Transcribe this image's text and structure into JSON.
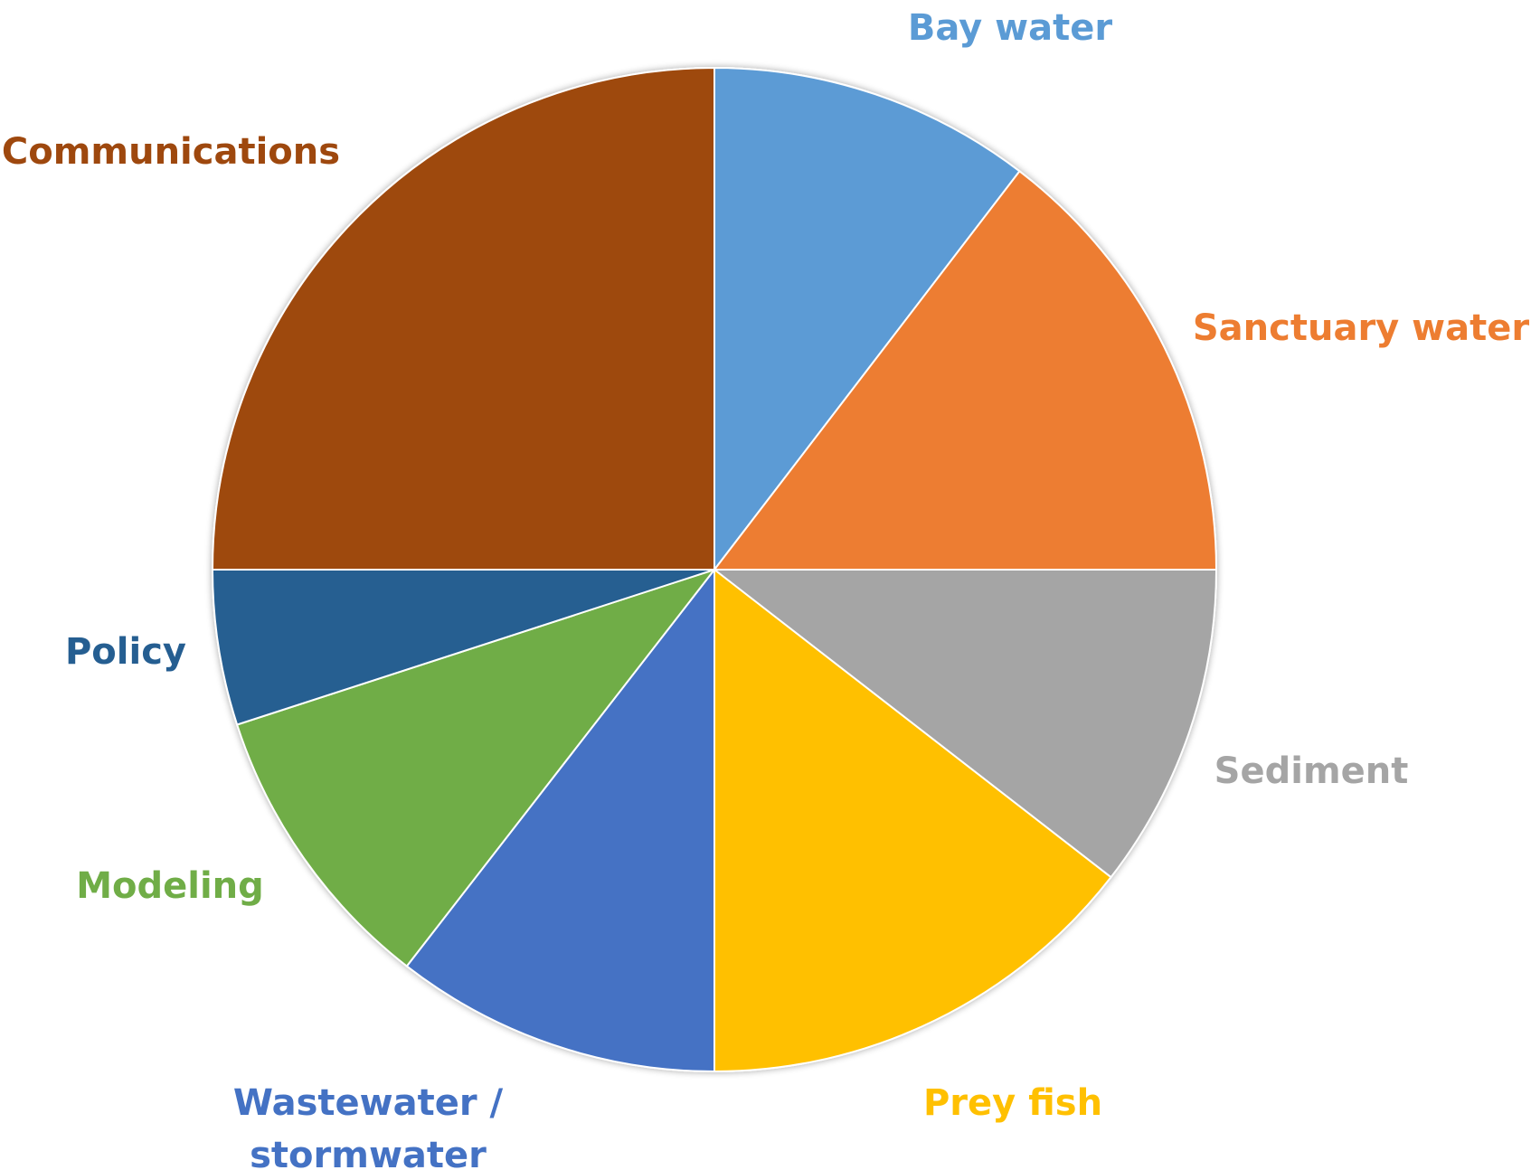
{
  "chart_data": {
    "type": "pie",
    "title": "",
    "start_angle_deg": 0,
    "direction": "clockwise",
    "slices": [
      {
        "label": "Bay water",
        "value": 10.4,
        "color": "#5B9BD5"
      },
      {
        "label": "Sanctuary water",
        "value": 14.6,
        "color": "#ED7D31"
      },
      {
        "label": "Sediment",
        "value": 10.5,
        "color": "#A5A5A5"
      },
      {
        "label": "Prey fish",
        "value": 14.5,
        "color": "#FFC000"
      },
      {
        "label": [
          "Wastewater /",
          "stormwater"
        ],
        "value": 10.5,
        "color": "#4472C4"
      },
      {
        "label": "Modeling",
        "value": 9.5,
        "color": "#70AD47"
      },
      {
        "label": "Policy",
        "value": 5.0,
        "color": "#255E91"
      },
      {
        "label": "Communications",
        "value": 25.0,
        "color": "#9E480E"
      }
    ]
  }
}
